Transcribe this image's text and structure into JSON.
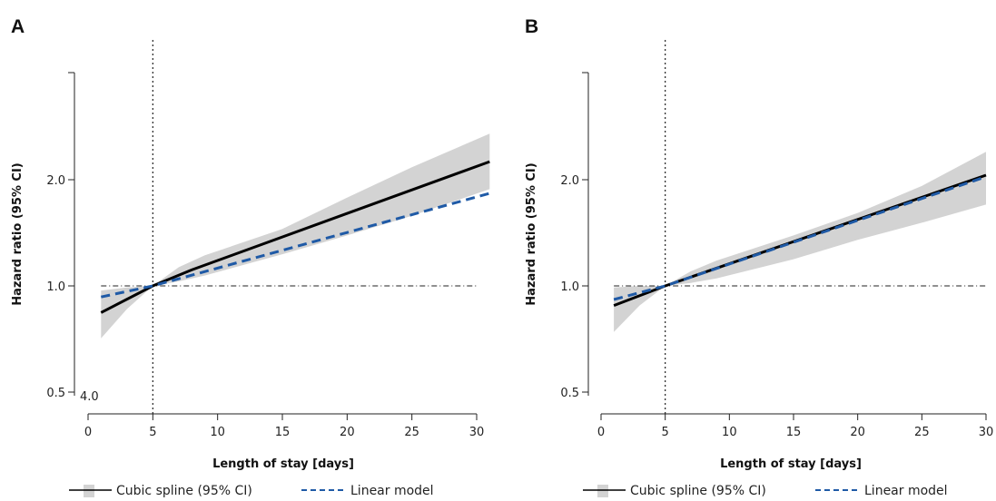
{
  "chart_data": [
    {
      "type": "line",
      "panel_label": "A",
      "xlabel": "Length of stay [days]",
      "ylabel": "Hazard ratio (95% CI)",
      "x_ticks": [
        0,
        5,
        10,
        15,
        20,
        25,
        30
      ],
      "y_ticks": [
        0.5,
        1.0,
        2.0
      ],
      "y_tick_labels": [
        "0.5",
        "1.0",
        "2.0"
      ],
      "y_scale": "log",
      "xlim": [
        -1,
        31
      ],
      "ylim": [
        0.46,
        3.9
      ],
      "reference_x": 5,
      "reference_y": 1.0,
      "annotation": "4.0",
      "series": [
        {
          "name": "Cubic spline (95% CI)",
          "color": "#000000",
          "x": [
            1,
            5,
            8,
            31
          ],
          "y": [
            0.84,
            1.0,
            1.11,
            2.25
          ]
        },
        {
          "name": "Linear model",
          "color": "#1f5aa6",
          "x": [
            1,
            5,
            31
          ],
          "y": [
            0.93,
            1.0,
            1.83
          ]
        }
      ],
      "band": {
        "name": "Cubic spline (95% CI)",
        "color": "#d3d3d3",
        "x": [
          1,
          3,
          5,
          7,
          9,
          15,
          20,
          25,
          31
        ],
        "lower": [
          0.71,
          0.86,
          1.0,
          1.03,
          1.07,
          1.23,
          1.39,
          1.58,
          1.88
        ],
        "upper": [
          0.97,
          0.99,
          1.0,
          1.13,
          1.22,
          1.45,
          1.78,
          2.17,
          2.7
        ]
      }
    },
    {
      "type": "line",
      "panel_label": "B",
      "xlabel": "Length of stay [days]",
      "ylabel": "Hazard ratio (95% CI)",
      "x_ticks": [
        0,
        5,
        10,
        15,
        20,
        25,
        30
      ],
      "y_ticks": [
        0.5,
        1.0,
        2.0
      ],
      "y_tick_labels": [
        "0.5",
        "1.0",
        "2.0"
      ],
      "y_scale": "log",
      "xlim": [
        -1,
        31
      ],
      "ylim": [
        0.46,
        3.9
      ],
      "reference_x": 5,
      "reference_y": 1.0,
      "series": [
        {
          "name": "Cubic spline (95% CI)",
          "color": "#000000",
          "x": [
            1,
            5,
            30
          ],
          "y": [
            0.88,
            1.0,
            2.06
          ]
        },
        {
          "name": "Linear model",
          "color": "#1f5aa6",
          "x": [
            1,
            5,
            30
          ],
          "y": [
            0.915,
            1.0,
            2.04
          ]
        }
      ],
      "band": {
        "name": "Cubic spline (95% CI)",
        "color": "#d3d3d3",
        "x": [
          1,
          3,
          5,
          7,
          9,
          15,
          20,
          25,
          30
        ],
        "lower": [
          0.74,
          0.88,
          1.0,
          1.02,
          1.05,
          1.19,
          1.35,
          1.51,
          1.7
        ],
        "upper": [
          0.99,
          1.0,
          1.0,
          1.1,
          1.18,
          1.39,
          1.61,
          1.92,
          2.4
        ]
      }
    }
  ],
  "legend": {
    "spline_label": "Cubic spline (95% CI)",
    "linear_label": "Linear model",
    "band_color": "#d3d3d3",
    "spline_color": "#000000",
    "linear_color": "#1f5aa6"
  }
}
